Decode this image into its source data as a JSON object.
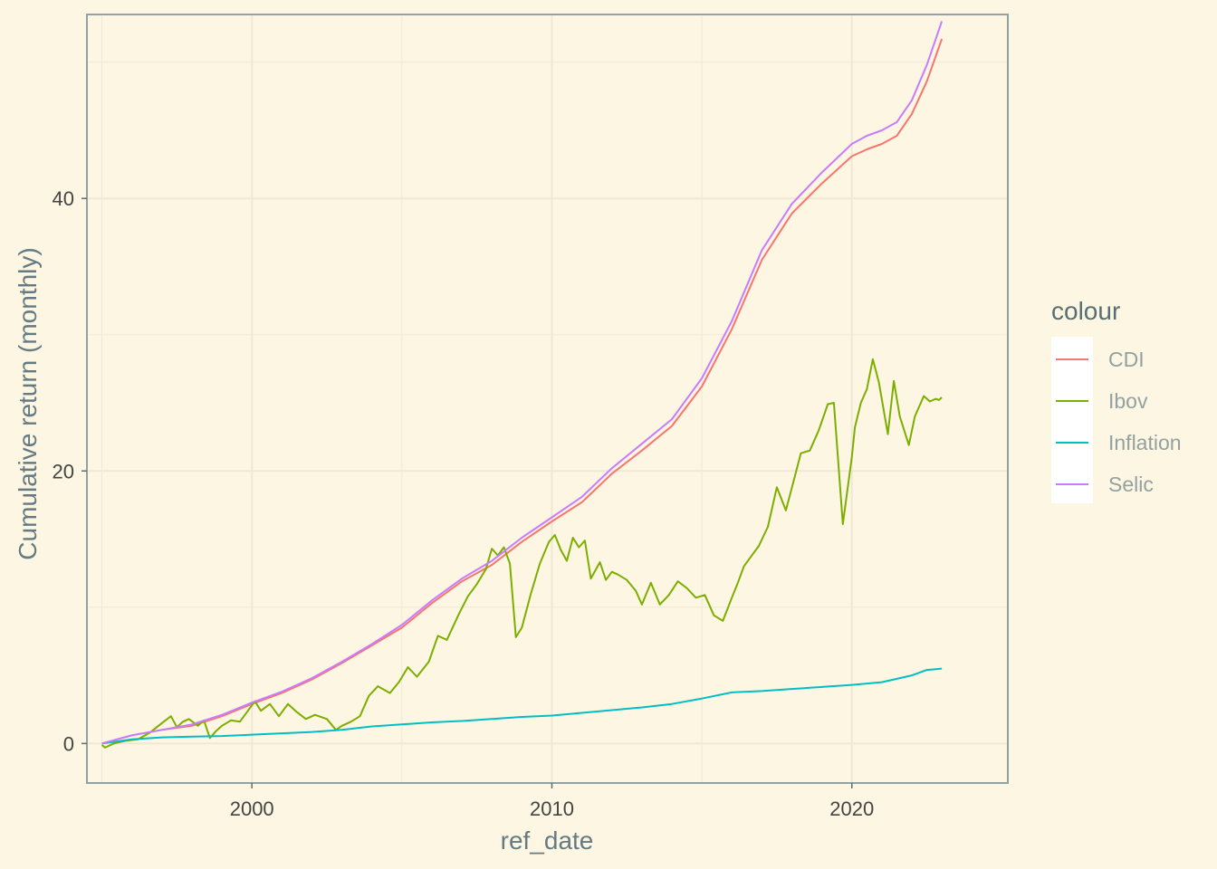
{
  "chart_data": {
    "type": "line",
    "title": "",
    "xlabel": "ref_date",
    "ylabel": "Cumulative return (monthly)",
    "xlim": [
      1994.5,
      2025.2
    ],
    "ylim": [
      -2.9,
      53.5
    ],
    "x_ticks": [
      2000,
      2010,
      2020
    ],
    "x_tick_labels": [
      "2000",
      "2010",
      "2020"
    ],
    "y_ticks": [
      0,
      20,
      40
    ],
    "y_tick_labels": [
      "0",
      "20",
      "40"
    ],
    "grid": true,
    "legend": {
      "title": "colour",
      "position": "right"
    },
    "series": [
      {
        "name": "CDI",
        "color": "#F8766D",
        "x": [
          1995.0,
          1996.0,
          1997.0,
          1998.0,
          1999.0,
          2000.0,
          2001.0,
          2002.0,
          2003.0,
          2004.0,
          2005.0,
          2006.0,
          2007.0,
          2008.0,
          2009.0,
          2010.0,
          2011.0,
          2012.0,
          2013.0,
          2014.0,
          2015.0,
          2016.0,
          2017.0,
          2018.0,
          2019.0,
          2020.0,
          2020.5,
          2021.0,
          2021.5,
          2022.0,
          2022.5,
          2023.0
        ],
        "y": [
          0.0,
          0.6,
          1.0,
          1.3,
          2.0,
          2.9,
          3.7,
          4.7,
          5.9,
          7.2,
          8.5,
          10.3,
          11.9,
          13.1,
          14.8,
          16.3,
          17.7,
          19.8,
          21.5,
          23.3,
          26.2,
          30.4,
          35.5,
          38.9,
          41.1,
          43.1,
          43.6,
          44.0,
          44.6,
          46.2,
          48.6,
          51.7
        ]
      },
      {
        "name": "Ibov",
        "color": "#7CAE00",
        "x": [
          1995.0,
          1995.1,
          1995.4,
          1995.8,
          1996.2,
          1996.6,
          1997.0,
          1997.3,
          1997.5,
          1997.7,
          1997.9,
          1998.2,
          1998.4,
          1998.6,
          1998.8,
          1999.0,
          1999.3,
          1999.6,
          1999.9,
          2000.1,
          2000.3,
          2000.6,
          2000.9,
          2001.2,
          2001.5,
          2001.8,
          2002.1,
          2002.5,
          2002.8,
          2003.0,
          2003.3,
          2003.6,
          2003.9,
          2004.2,
          2004.6,
          2004.9,
          2005.2,
          2005.5,
          2005.9,
          2006.2,
          2006.5,
          2006.9,
          2007.2,
          2007.5,
          2007.8,
          2008.0,
          2008.2,
          2008.4,
          2008.6,
          2008.8,
          2009.0,
          2009.3,
          2009.6,
          2009.9,
          2010.1,
          2010.3,
          2010.5,
          2010.7,
          2010.9,
          2011.1,
          2011.3,
          2011.6,
          2011.8,
          2012.0,
          2012.2,
          2012.5,
          2012.8,
          2013.0,
          2013.3,
          2013.6,
          2013.9,
          2014.2,
          2014.5,
          2014.8,
          2015.1,
          2015.4,
          2015.7,
          2016.0,
          2016.2,
          2016.4,
          2016.6,
          2016.9,
          2017.2,
          2017.5,
          2017.8,
          2018.1,
          2018.3,
          2018.6,
          2018.9,
          2019.2,
          2019.4,
          2019.7,
          2020.0,
          2020.1,
          2020.3,
          2020.5,
          2020.7,
          2020.9,
          2021.2,
          2021.4,
          2021.6,
          2021.9,
          2022.1,
          2022.4,
          2022.6,
          2022.8,
          2022.9,
          2023.0
        ],
        "y": [
          -0.1,
          -0.3,
          0.0,
          0.2,
          0.3,
          0.8,
          1.5,
          2.0,
          1.2,
          1.6,
          1.8,
          1.3,
          1.7,
          0.4,
          0.9,
          1.3,
          1.7,
          1.6,
          2.5,
          3.1,
          2.4,
          2.9,
          2.0,
          2.9,
          2.3,
          1.8,
          2.1,
          1.8,
          1.0,
          1.3,
          1.6,
          2.0,
          3.5,
          4.2,
          3.7,
          4.5,
          5.6,
          4.9,
          6.0,
          7.9,
          7.6,
          9.5,
          10.8,
          11.7,
          12.8,
          14.3,
          13.8,
          14.4,
          13.2,
          7.8,
          8.5,
          11.0,
          13.2,
          14.8,
          15.3,
          14.2,
          13.4,
          15.1,
          14.4,
          14.9,
          12.1,
          13.3,
          12.0,
          12.6,
          12.4,
          12.0,
          11.2,
          10.2,
          11.8,
          10.2,
          10.9,
          11.9,
          11.4,
          10.7,
          10.9,
          9.4,
          9.0,
          10.7,
          11.8,
          13.0,
          13.6,
          14.5,
          15.9,
          18.8,
          17.1,
          19.6,
          21.3,
          21.5,
          23.0,
          24.9,
          25.0,
          16.1,
          21.0,
          23.2,
          25.0,
          26.0,
          28.2,
          26.5,
          22.7,
          26.6,
          24.0,
          21.9,
          24.0,
          25.5,
          25.1,
          25.3,
          25.2,
          25.4
        ],
        "_debug": null
      },
      {
        "name": "Inflation",
        "color": "#00BFC4",
        "x": [
          1995.0,
          1996.0,
          1997.0,
          1998.0,
          1999.0,
          2000.0,
          2001.0,
          2002.0,
          2003.0,
          2004.0,
          2005.0,
          2006.0,
          2007.0,
          2008.0,
          2009.0,
          2010.0,
          2011.0,
          2012.0,
          2013.0,
          2014.0,
          2015.0,
          2016.0,
          2017.0,
          2018.0,
          2019.0,
          2020.0,
          2021.0,
          2022.0,
          2022.5,
          2023.0
        ],
        "y": [
          0.0,
          0.3,
          0.45,
          0.5,
          0.55,
          0.65,
          0.75,
          0.85,
          1.0,
          1.25,
          1.4,
          1.55,
          1.65,
          1.8,
          1.95,
          2.05,
          2.25,
          2.45,
          2.65,
          2.9,
          3.3,
          3.75,
          3.85,
          4.0,
          4.15,
          4.3,
          4.5,
          5.0,
          5.4,
          5.5
        ]
      },
      {
        "name": "Selic",
        "color": "#C77CFF",
        "x": [
          1995.0,
          1996.0,
          1997.0,
          1998.0,
          1999.0,
          2000.0,
          2001.0,
          2002.0,
          2003.0,
          2004.0,
          2005.0,
          2006.0,
          2007.0,
          2008.0,
          2009.0,
          2010.0,
          2011.0,
          2012.0,
          2013.0,
          2014.0,
          2015.0,
          2016.0,
          2017.0,
          2018.0,
          2019.0,
          2020.0,
          2020.5,
          2021.0,
          2021.5,
          2022.0,
          2022.5,
          2023.0
        ],
        "y": [
          0.0,
          0.6,
          1.0,
          1.4,
          2.1,
          3.0,
          3.8,
          4.8,
          6.0,
          7.3,
          8.7,
          10.5,
          12.1,
          13.4,
          15.1,
          16.6,
          18.1,
          20.2,
          22.0,
          23.8,
          26.8,
          31.0,
          36.2,
          39.6,
          41.9,
          44.0,
          44.6,
          45.0,
          45.6,
          47.2,
          49.8,
          53.0
        ]
      }
    ]
  }
}
